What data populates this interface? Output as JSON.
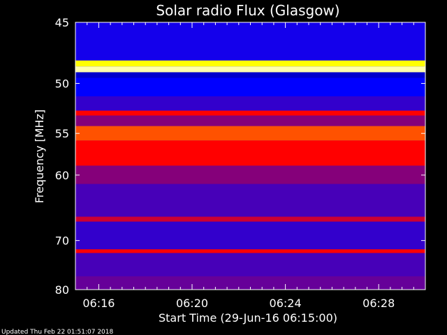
{
  "chart_data": {
    "type": "heatmap",
    "title": "Solar radio Flux (Glasgow)",
    "xlabel": "Start Time (29-Jun-16 06:15:00)",
    "ylabel": "Frequency [MHz]",
    "x_tick_labels": [
      "06:16",
      "06:20",
      "06:24",
      "06:28"
    ],
    "x_ticks_minutes": [
      16,
      20,
      24,
      28
    ],
    "xlim_minutes": [
      15,
      30
    ],
    "y_tick_labels": [
      "45",
      "50",
      "55",
      "60",
      "70",
      "80"
    ],
    "y_ticks_mhz": [
      45,
      50,
      55,
      60,
      70,
      80
    ],
    "ylim_mhz": [
      80,
      45
    ],
    "y_scale": "reciprocal",
    "colormap": [
      "#000080",
      "#0000ff",
      "#ff0000",
      "#ffff00",
      "#ffffff"
    ],
    "bands_mhz": [
      {
        "from": 45.0,
        "to": 48.0,
        "level": 0.27
      },
      {
        "from": 48.0,
        "to": 48.5,
        "level": 0.75
      },
      {
        "from": 48.5,
        "to": 49.0,
        "level": 0.92
      },
      {
        "from": 49.0,
        "to": 49.5,
        "level": 0.15
      },
      {
        "from": 49.5,
        "to": 51.2,
        "level": 0.25
      },
      {
        "from": 51.2,
        "to": 52.6,
        "level": 0.3
      },
      {
        "from": 52.6,
        "to": 53.1,
        "level": 0.5
      },
      {
        "from": 53.1,
        "to": 54.2,
        "level": 0.38
      },
      {
        "from": 54.2,
        "to": 55.8,
        "level": 0.58
      },
      {
        "from": 55.8,
        "to": 58.8,
        "level": 0.5
      },
      {
        "from": 58.8,
        "to": 61.2,
        "level": 0.38
      },
      {
        "from": 61.2,
        "to": 66.0,
        "level": 0.32
      },
      {
        "from": 66.0,
        "to": 66.8,
        "level": 0.45
      },
      {
        "from": 66.8,
        "to": 71.6,
        "level": 0.3
      },
      {
        "from": 71.6,
        "to": 72.3,
        "level": 0.5
      },
      {
        "from": 72.3,
        "to": 77.0,
        "level": 0.32
      },
      {
        "from": 77.0,
        "to": 80.0,
        "level": 0.35
      }
    ],
    "footer": "Updated Thu Feb 22 01:51:07 2018"
  }
}
